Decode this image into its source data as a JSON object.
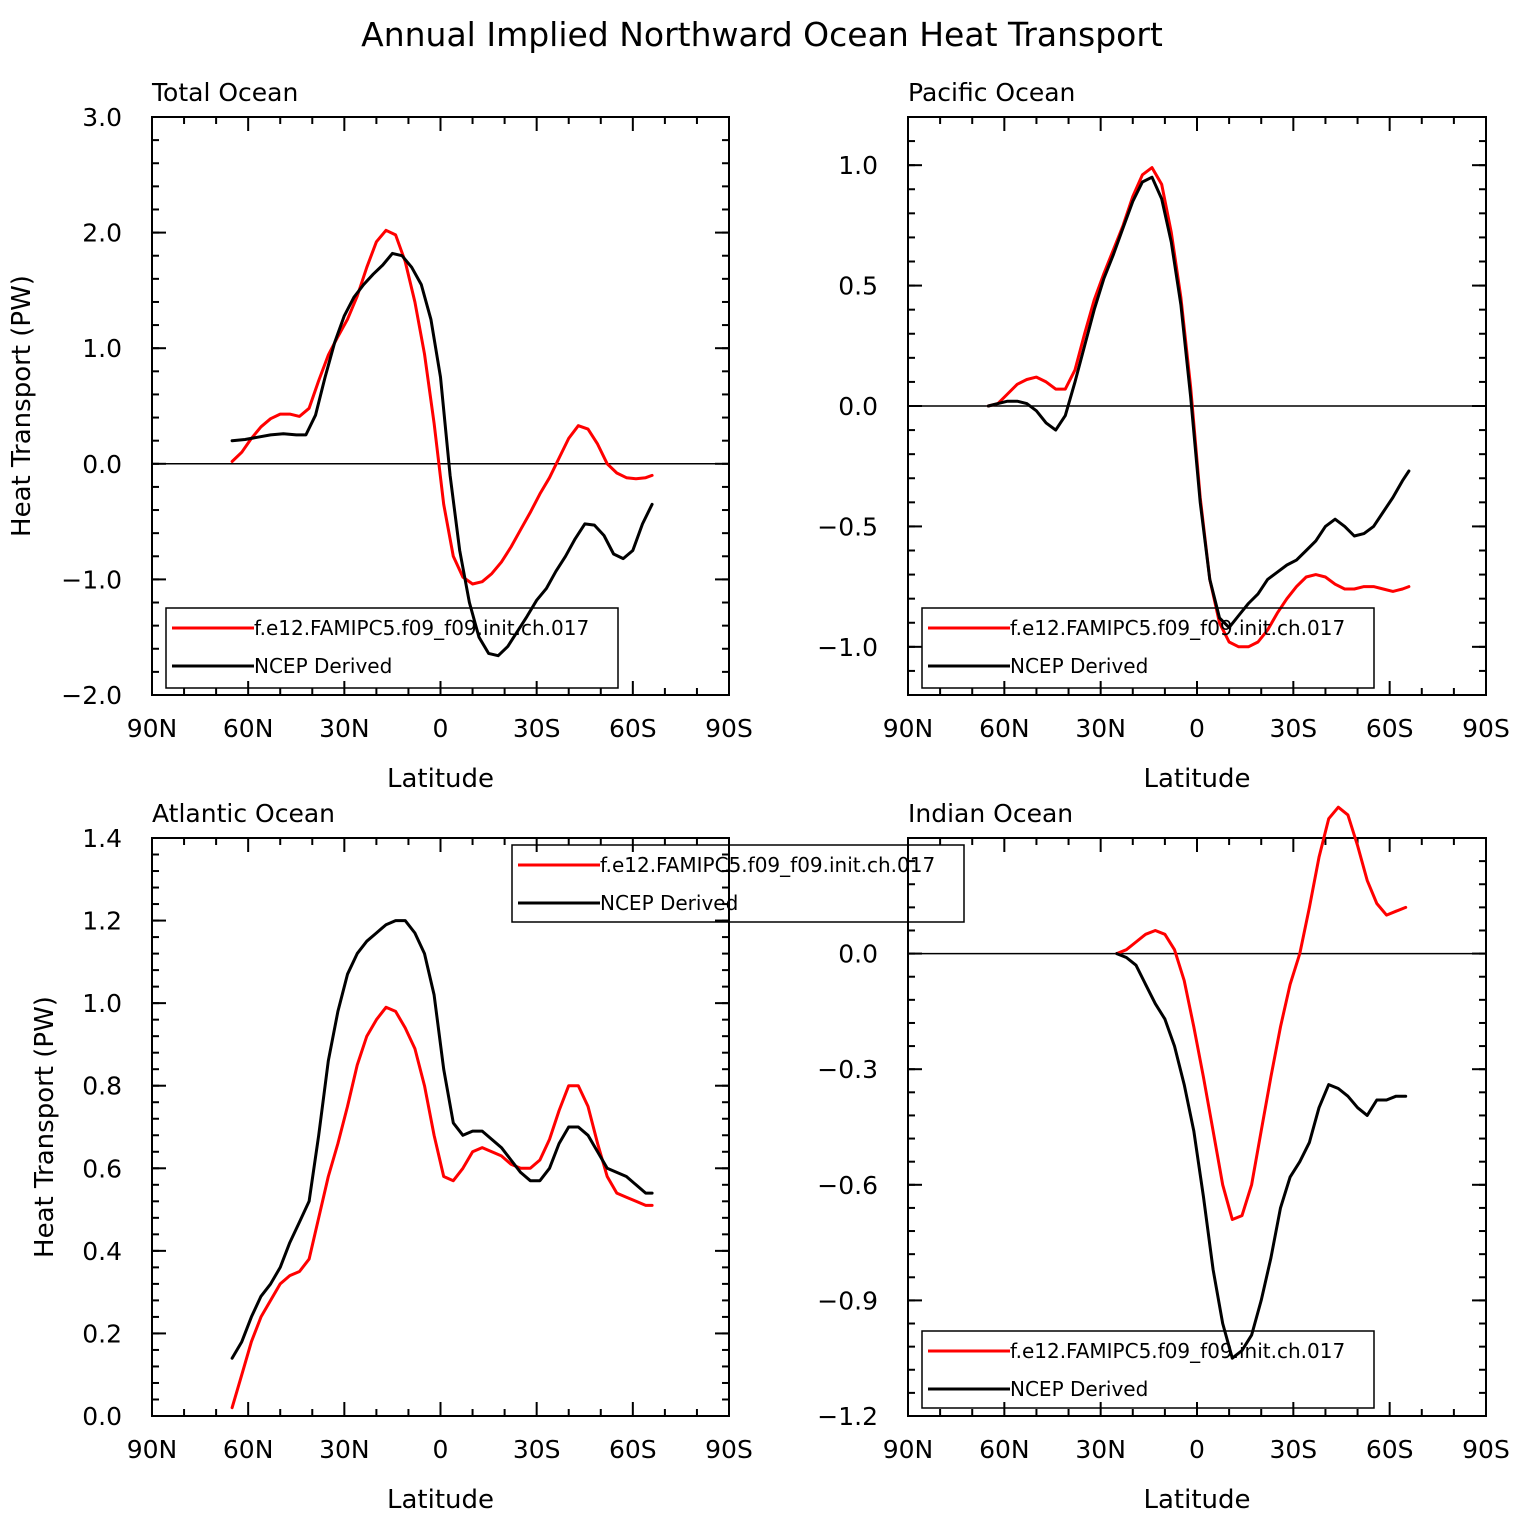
{
  "figure": {
    "title": "Annual Implied Northward Ocean Heat Transport"
  },
  "colors": {
    "model": "#ff0000",
    "obs": "#000000",
    "zero_line": "#000000"
  },
  "chart_data": [
    {
      "type": "line",
      "title": "Total Ocean",
      "xlabel": "Latitude",
      "ylabel": "Heat Transport (PW)",
      "xlim": [
        -90,
        90
      ],
      "ylim": [
        -2.0,
        3.0
      ],
      "xticks": [
        -90,
        -60,
        -30,
        0,
        30,
        60,
        90
      ],
      "xtick_labels": [
        "90N",
        "60N",
        "30N",
        "0",
        "30S",
        "60S",
        "90S"
      ],
      "yticks": [
        -2.0,
        -1.0,
        0.0,
        1.0,
        2.0,
        3.0
      ],
      "ytick_labels": [
        "−2.0",
        "−1.0",
        "0.0",
        "1.0",
        "2.0",
        "3.0"
      ],
      "legend_position": "bottom-left",
      "series": [
        {
          "name": "f.e12.FAMIPC5.f09_f09.init.ch.017",
          "color": "#ff0000",
          "x": [
            -65,
            -62,
            -59,
            -56,
            -53,
            -50,
            -47,
            -44,
            -41,
            -38,
            -35,
            -32,
            -29,
            -26,
            -23,
            -20,
            -17,
            -14,
            -11,
            -8,
            -5,
            -2,
            1,
            4,
            7,
            10,
            13,
            16,
            19,
            22,
            25,
            28,
            31,
            34,
            37,
            40,
            43,
            46,
            49,
            52,
            55,
            58,
            61,
            64,
            66
          ],
          "y": [
            0.02,
            0.1,
            0.22,
            0.32,
            0.39,
            0.43,
            0.43,
            0.41,
            0.48,
            0.72,
            0.94,
            1.1,
            1.25,
            1.45,
            1.7,
            1.92,
            2.02,
            1.98,
            1.75,
            1.4,
            0.95,
            0.35,
            -0.35,
            -0.8,
            -0.98,
            -1.04,
            -1.02,
            -0.95,
            -0.85,
            -0.72,
            -0.57,
            -0.42,
            -0.26,
            -0.12,
            0.05,
            0.22,
            0.33,
            0.3,
            0.17,
            0.0,
            -0.08,
            -0.12,
            -0.13,
            -0.12,
            -0.1
          ]
        },
        {
          "name": "NCEP Derived",
          "color": "#000000",
          "x": [
            -65,
            -61,
            -57,
            -53,
            -49,
            -45,
            -42,
            -39,
            -36,
            -33,
            -30,
            -27,
            -24,
            -21,
            -18,
            -15,
            -12,
            -9,
            -6,
            -3,
            0,
            3,
            6,
            9,
            12,
            15,
            18,
            21,
            24,
            27,
            30,
            33,
            36,
            39,
            42,
            45,
            48,
            51,
            54,
            57,
            60,
            63,
            66
          ],
          "y": [
            0.2,
            0.21,
            0.23,
            0.25,
            0.26,
            0.25,
            0.25,
            0.42,
            0.75,
            1.05,
            1.28,
            1.44,
            1.55,
            1.64,
            1.72,
            1.82,
            1.8,
            1.7,
            1.55,
            1.25,
            0.75,
            -0.1,
            -0.75,
            -1.2,
            -1.5,
            -1.64,
            -1.66,
            -1.58,
            -1.45,
            -1.32,
            -1.18,
            -1.08,
            -0.93,
            -0.8,
            -0.65,
            -0.52,
            -0.53,
            -0.62,
            -0.78,
            -0.82,
            -0.75,
            -0.52,
            -0.35
          ]
        }
      ]
    },
    {
      "type": "line",
      "title": "Pacific Ocean",
      "xlabel": "Latitude",
      "ylabel": "",
      "xlim": [
        -90,
        90
      ],
      "ylim": [
        -1.2,
        1.2
      ],
      "xticks": [
        -90,
        -60,
        -30,
        0,
        30,
        60,
        90
      ],
      "xtick_labels": [
        "90N",
        "60N",
        "30N",
        "0",
        "30S",
        "60S",
        "90S"
      ],
      "yticks": [
        -1.0,
        -0.5,
        0.0,
        0.5,
        1.0
      ],
      "ytick_labels": [
        "−1.0",
        "−0.5",
        "0.0",
        "0.5",
        "1.0"
      ],
      "legend_position": "bottom-left",
      "series": [
        {
          "name": "f.e12.FAMIPC5.f09_f09.init.ch.017",
          "color": "#ff0000",
          "x": [
            -65,
            -62,
            -59,
            -56,
            -53,
            -50,
            -47,
            -44,
            -41,
            -38,
            -35,
            -32,
            -29,
            -26,
            -23,
            -20,
            -17,
            -14,
            -11,
            -8,
            -5,
            -2,
            1,
            4,
            7,
            10,
            13,
            16,
            19,
            22,
            25,
            28,
            31,
            34,
            37,
            40,
            43,
            46,
            49,
            52,
            55,
            58,
            61,
            64,
            66
          ],
          "y": [
            0.0,
            0.01,
            0.05,
            0.09,
            0.11,
            0.12,
            0.1,
            0.07,
            0.07,
            0.15,
            0.3,
            0.44,
            0.55,
            0.65,
            0.75,
            0.87,
            0.96,
            0.99,
            0.92,
            0.72,
            0.45,
            0.08,
            -0.38,
            -0.72,
            -0.9,
            -0.98,
            -1.0,
            -1.0,
            -0.98,
            -0.93,
            -0.86,
            -0.8,
            -0.75,
            -0.71,
            -0.7,
            -0.71,
            -0.74,
            -0.76,
            -0.76,
            -0.75,
            -0.75,
            -0.76,
            -0.77,
            -0.76,
            -0.75
          ]
        },
        {
          "name": "NCEP Derived",
          "color": "#000000",
          "x": [
            -65,
            -62,
            -59,
            -56,
            -53,
            -50,
            -47,
            -44,
            -41,
            -38,
            -35,
            -32,
            -29,
            -26,
            -23,
            -20,
            -17,
            -14,
            -11,
            -8,
            -5,
            -2,
            1,
            4,
            7,
            10,
            13,
            16,
            19,
            22,
            25,
            28,
            31,
            34,
            37,
            40,
            43,
            46,
            49,
            52,
            55,
            58,
            61,
            64,
            66
          ],
          "y": [
            0.0,
            0.01,
            0.02,
            0.02,
            0.01,
            -0.02,
            -0.07,
            -0.1,
            -0.04,
            0.1,
            0.25,
            0.4,
            0.53,
            0.63,
            0.74,
            0.85,
            0.93,
            0.95,
            0.86,
            0.68,
            0.42,
            0.04,
            -0.4,
            -0.72,
            -0.88,
            -0.92,
            -0.87,
            -0.82,
            -0.78,
            -0.72,
            -0.69,
            -0.66,
            -0.64,
            -0.6,
            -0.56,
            -0.5,
            -0.47,
            -0.5,
            -0.54,
            -0.53,
            -0.5,
            -0.44,
            -0.38,
            -0.31,
            -0.27
          ]
        }
      ]
    },
    {
      "type": "line",
      "title": "Atlantic Ocean",
      "xlabel": "Latitude",
      "ylabel": "Heat Transport (PW)",
      "xlim": [
        -90,
        90
      ],
      "ylim": [
        0.0,
        1.4
      ],
      "xticks": [
        -90,
        -60,
        -30,
        0,
        30,
        60,
        90
      ],
      "xtick_labels": [
        "90N",
        "60N",
        "30N",
        "0",
        "30S",
        "60S",
        "90S"
      ],
      "yticks": [
        0.0,
        0.2,
        0.4,
        0.6,
        0.8,
        1.0,
        1.2,
        1.4
      ],
      "ytick_labels": [
        "0.0",
        "0.2",
        "0.4",
        "0.6",
        "0.8",
        "1.0",
        "1.2",
        "1.4"
      ],
      "legend_position": "top-right",
      "series": [
        {
          "name": "f.e12.FAMIPC5.f09_f09.init.ch.017",
          "color": "#ff0000",
          "x": [
            -65,
            -62,
            -59,
            -56,
            -53,
            -50,
            -47,
            -44,
            -41,
            -38,
            -35,
            -32,
            -29,
            -26,
            -23,
            -20,
            -17,
            -14,
            -11,
            -8,
            -5,
            -2,
            1,
            4,
            7,
            10,
            13,
            16,
            19,
            22,
            25,
            28,
            31,
            34,
            37,
            40,
            43,
            46,
            49,
            52,
            55,
            58,
            61,
            64,
            66
          ],
          "y": [
            0.02,
            0.1,
            0.18,
            0.24,
            0.28,
            0.32,
            0.34,
            0.35,
            0.38,
            0.48,
            0.58,
            0.66,
            0.75,
            0.85,
            0.92,
            0.96,
            0.99,
            0.98,
            0.94,
            0.89,
            0.8,
            0.68,
            0.58,
            0.57,
            0.6,
            0.64,
            0.65,
            0.64,
            0.63,
            0.61,
            0.6,
            0.6,
            0.62,
            0.67,
            0.74,
            0.8,
            0.8,
            0.75,
            0.66,
            0.58,
            0.54,
            0.53,
            0.52,
            0.51,
            0.51
          ]
        },
        {
          "name": "NCEP Derived",
          "color": "#000000",
          "x": [
            -65,
            -62,
            -59,
            -56,
            -53,
            -50,
            -47,
            -44,
            -41,
            -38,
            -35,
            -32,
            -29,
            -26,
            -23,
            -20,
            -17,
            -14,
            -11,
            -8,
            -5,
            -2,
            1,
            4,
            7,
            10,
            13,
            16,
            19,
            22,
            25,
            28,
            31,
            34,
            37,
            40,
            43,
            46,
            49,
            52,
            55,
            58,
            61,
            64,
            66
          ],
          "y": [
            0.14,
            0.18,
            0.24,
            0.29,
            0.32,
            0.36,
            0.42,
            0.47,
            0.52,
            0.68,
            0.86,
            0.98,
            1.07,
            1.12,
            1.15,
            1.17,
            1.19,
            1.2,
            1.2,
            1.17,
            1.12,
            1.02,
            0.84,
            0.71,
            0.68,
            0.69,
            0.69,
            0.67,
            0.65,
            0.62,
            0.59,
            0.57,
            0.57,
            0.6,
            0.66,
            0.7,
            0.7,
            0.68,
            0.64,
            0.6,
            0.59,
            0.58,
            0.56,
            0.54,
            0.54
          ]
        }
      ]
    },
    {
      "type": "line",
      "title": "Indian Ocean",
      "xlabel": "Latitude",
      "ylabel": "",
      "xlim": [
        -90,
        90
      ],
      "ylim": [
        -1.2,
        0.3
      ],
      "xticks": [
        -90,
        -60,
        -30,
        0,
        30,
        60,
        90
      ],
      "xtick_labels": [
        "90N",
        "60N",
        "30N",
        "0",
        "30S",
        "60S",
        "90S"
      ],
      "yticks": [
        -1.2,
        -0.9,
        -0.6,
        -0.3,
        0.0
      ],
      "ytick_labels": [
        "−1.2",
        "−0.9",
        "−0.6",
        "−0.3",
        "0.0"
      ],
      "legend_position": "bottom-left",
      "series": [
        {
          "name": "f.e12.FAMIPC5.f09_f09.init.ch.017",
          "color": "#ff0000",
          "x": [
            -25,
            -22,
            -19,
            -16,
            -13,
            -10,
            -7,
            -4,
            -1,
            2,
            5,
            8,
            11,
            14,
            17,
            20,
            23,
            26,
            29,
            32,
            35,
            38,
            41,
            44,
            47,
            50,
            53,
            56,
            59,
            62,
            65
          ],
          "y": [
            0.0,
            0.01,
            0.03,
            0.05,
            0.06,
            0.05,
            0.01,
            -0.07,
            -0.19,
            -0.32,
            -0.46,
            -0.6,
            -0.69,
            -0.68,
            -0.6,
            -0.46,
            -0.32,
            -0.19,
            -0.08,
            0.0,
            0.12,
            0.25,
            0.35,
            0.38,
            0.36,
            0.28,
            0.19,
            0.13,
            0.1,
            0.11,
            0.12
          ]
        },
        {
          "name": "NCEP Derived",
          "color": "#000000",
          "x": [
            -25,
            -22,
            -19,
            -16,
            -13,
            -10,
            -7,
            -4,
            -1,
            2,
            5,
            8,
            11,
            14,
            17,
            20,
            23,
            26,
            29,
            32,
            35,
            38,
            41,
            44,
            47,
            50,
            53,
            56,
            59,
            62,
            65
          ],
          "y": [
            0.0,
            -0.01,
            -0.03,
            -0.08,
            -0.13,
            -0.17,
            -0.24,
            -0.34,
            -0.46,
            -0.63,
            -0.82,
            -0.96,
            -1.05,
            -1.03,
            -0.99,
            -0.9,
            -0.79,
            -0.66,
            -0.58,
            -0.54,
            -0.49,
            -0.4,
            -0.34,
            -0.35,
            -0.37,
            -0.4,
            -0.42,
            -0.38,
            -0.38,
            -0.37,
            -0.37
          ]
        }
      ]
    }
  ]
}
